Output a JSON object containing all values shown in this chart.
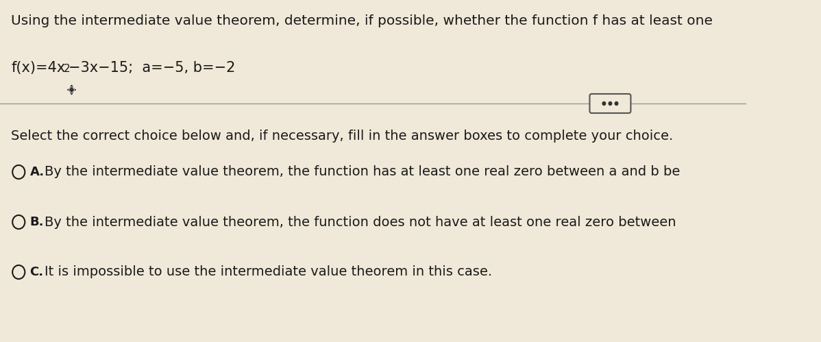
{
  "background_color": "#f0e8d8",
  "title_line": "Using the intermediate value theorem, determine, if possible, whether the function f has at least one",
  "select_line": "Select the correct choice below and, if necessary, fill in the answer boxes to complete your choice.",
  "choice_A": "By the intermediate value theorem, the function has at least one real zero between a and b be",
  "choice_B": "By the intermediate value theorem, the function does not have at least one real zero between",
  "choice_C": "It is impossible to use the intermediate value theorem in this case.",
  "text_color": "#1a1a1a",
  "circle_color": "#1a1a1a",
  "divider_color": "#999999",
  "font_size_title": 14.5,
  "font_size_function": 15,
  "font_size_select": 14,
  "font_size_choices": 14,
  "dots_button_bg": "#f0e8d8",
  "dots_button_border": "#555555",
  "dots_color": "#333333"
}
